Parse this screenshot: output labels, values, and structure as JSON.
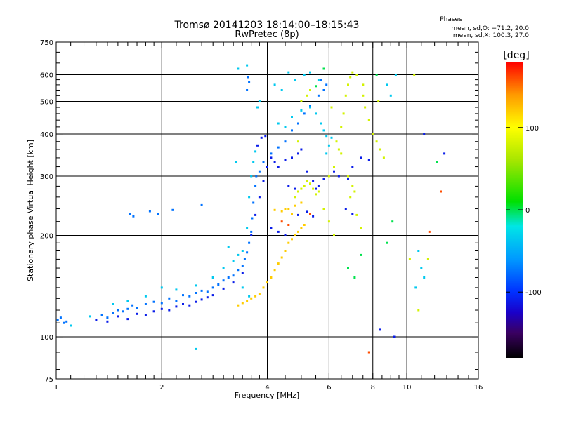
{
  "chart_data": {
    "type": "scatter",
    "title": "Tromsø 20141203 18:14:00–18:15:43",
    "subtitle": "RwPretec (8p)",
    "stats": {
      "heading": "Phases",
      "line1": "mean, sd,O: −71.2, 20.0",
      "line2": "mean, sd,X: 100.3, 27.0"
    },
    "xlabel": "Frequency [MHz]",
    "ylabel": "Stationary phase Virtual Height [km]",
    "x_scale": "log",
    "y_scale": "log",
    "xlim": [
      1,
      16
    ],
    "ylim": [
      75,
      750
    ],
    "x_ticks": [
      1,
      2,
      4,
      6,
      8,
      10,
      16
    ],
    "x_tick_labels": [
      "1",
      "2",
      "4",
      "6",
      "8",
      "10",
      "16"
    ],
    "x_minor_ticks": [
      1.1,
      1.2,
      1.3,
      1.4,
      1.5,
      1.6,
      1.7,
      1.8,
      1.9,
      2.2,
      2.4,
      2.6,
      2.8,
      3,
      3.2,
      3.4,
      3.6,
      3.8,
      4.5,
      5,
      5.5,
      6.5,
      7,
      7.5,
      8.5,
      9,
      9.5,
      11,
      12,
      13,
      14,
      15
    ],
    "y_ticks": [
      75,
      100,
      200,
      300,
      400,
      500,
      600,
      750
    ],
    "y_tick_labels": [
      "75",
      "100",
      "200",
      "300",
      "400",
      "500",
      "600",
      "750"
    ],
    "y_minor_ticks": [
      80,
      90,
      110,
      120,
      130,
      140,
      150,
      160,
      170,
      180,
      190,
      220,
      240,
      260,
      280,
      320,
      340,
      360,
      380,
      420,
      440,
      460,
      480,
      520,
      540,
      560,
      580,
      650,
      700
    ],
    "grid": true,
    "grid_x": [
      2,
      4,
      6,
      8,
      10
    ],
    "grid_y": [
      100,
      200,
      300,
      400,
      500,
      600
    ],
    "colorbar": {
      "label": "[deg]",
      "min": -180,
      "max": 180,
      "ticks": [
        100,
        0,
        -100
      ],
      "tick_labels": [
        "100",
        "0",
        "-100"
      ],
      "colormap": [
        {
          "value": -180,
          "color": "#000000"
        },
        {
          "value": -150,
          "color": "#3a0060"
        },
        {
          "value": -125,
          "color": "#1a00c8"
        },
        {
          "value": -100,
          "color": "#0030ff"
        },
        {
          "value": -60,
          "color": "#0099ff"
        },
        {
          "value": -20,
          "color": "#00e6e6"
        },
        {
          "value": 10,
          "color": "#00e000"
        },
        {
          "value": 60,
          "color": "#a6e600"
        },
        {
          "value": 100,
          "color": "#ffff00"
        },
        {
          "value": 140,
          "color": "#ff9900"
        },
        {
          "value": 180,
          "color": "#ff0000"
        }
      ]
    },
    "series": [
      {
        "phase": -75,
        "points": [
          [
            1.01,
            112
          ],
          [
            1.03,
            114
          ],
          [
            1.05,
            110
          ],
          [
            1.07,
            111
          ],
          [
            1.35,
            116
          ],
          [
            1.4,
            114
          ],
          [
            1.45,
            118
          ],
          [
            1.5,
            120
          ],
          [
            1.55,
            119
          ],
          [
            1.6,
            121
          ],
          [
            1.65,
            124
          ],
          [
            1.7,
            122
          ],
          [
            1.8,
            125
          ],
          [
            1.9,
            127
          ],
          [
            2.0,
            126
          ],
          [
            2.1,
            130
          ],
          [
            2.2,
            128
          ],
          [
            2.3,
            133
          ],
          [
            2.4,
            132
          ],
          [
            2.5,
            135
          ],
          [
            2.6,
            137
          ],
          [
            2.7,
            136
          ],
          [
            2.8,
            140
          ],
          [
            2.9,
            143
          ],
          [
            3.0,
            147
          ],
          [
            3.1,
            150
          ],
          [
            3.2,
            152
          ],
          [
            3.3,
            158
          ],
          [
            3.4,
            162
          ],
          [
            3.45,
            170
          ],
          [
            3.5,
            178
          ],
          [
            3.55,
            190
          ],
          [
            3.6,
            205
          ],
          [
            3.62,
            225
          ],
          [
            3.65,
            250
          ],
          [
            3.7,
            280
          ],
          [
            3.72,
            300
          ],
          [
            3.8,
            310
          ],
          [
            3.9,
            330
          ],
          [
            4.1,
            350
          ],
          [
            4.3,
            365
          ],
          [
            4.5,
            380
          ],
          [
            4.7,
            410
          ],
          [
            4.9,
            430
          ],
          [
            5.1,
            460
          ],
          [
            5.3,
            485
          ],
          [
            5.6,
            520
          ],
          [
            5.8,
            540
          ],
          [
            5.9,
            560
          ],
          [
            5.7,
            580
          ],
          [
            3.52,
            590
          ],
          [
            3.55,
            570
          ],
          [
            3.5,
            540
          ],
          [
            1.62,
            232
          ],
          [
            1.66,
            228
          ],
          [
            1.85,
            236
          ],
          [
            1.95,
            232
          ],
          [
            2.15,
            238
          ],
          [
            2.6,
            246
          ]
        ]
      },
      {
        "phase": -110,
        "points": [
          [
            1.3,
            112
          ],
          [
            1.4,
            111
          ],
          [
            1.5,
            115
          ],
          [
            1.6,
            113
          ],
          [
            1.7,
            117
          ],
          [
            1.8,
            116
          ],
          [
            1.9,
            119
          ],
          [
            2.0,
            121
          ],
          [
            2.1,
            120
          ],
          [
            2.2,
            123
          ],
          [
            2.3,
            125
          ],
          [
            2.4,
            124
          ],
          [
            2.5,
            127
          ],
          [
            2.6,
            129
          ],
          [
            2.7,
            131
          ],
          [
            2.8,
            133
          ],
          [
            3.0,
            139
          ],
          [
            3.2,
            145
          ],
          [
            3.4,
            155
          ],
          [
            3.6,
            200
          ],
          [
            3.7,
            230
          ],
          [
            3.8,
            260
          ],
          [
            3.9,
            290
          ],
          [
            4.0,
            320
          ],
          [
            4.1,
            340
          ],
          [
            4.2,
            330
          ],
          [
            4.3,
            320
          ],
          [
            4.5,
            335
          ],
          [
            4.7,
            340
          ],
          [
            4.9,
            350
          ],
          [
            5.0,
            360
          ],
          [
            5.2,
            310
          ],
          [
            5.4,
            290
          ],
          [
            5.5,
            275
          ],
          [
            5.6,
            280
          ],
          [
            5.8,
            295
          ],
          [
            6.2,
            310
          ],
          [
            6.4,
            300
          ],
          [
            6.8,
            295
          ],
          [
            7.0,
            320
          ],
          [
            7.4,
            340
          ],
          [
            7.8,
            335
          ],
          [
            4.6,
            280
          ],
          [
            4.8,
            275
          ],
          [
            4.9,
            230
          ],
          [
            5.2,
            235
          ],
          [
            5.4,
            228
          ],
          [
            4.1,
            210
          ],
          [
            4.3,
            205
          ],
          [
            4.5,
            200
          ],
          [
            6.7,
            240
          ],
          [
            7.0,
            232
          ],
          [
            8.4,
            105
          ],
          [
            9.2,
            100
          ],
          [
            11.2,
            400
          ],
          [
            12.8,
            350
          ],
          [
            3.75,
            370
          ],
          [
            3.85,
            390
          ],
          [
            3.95,
            395
          ]
        ]
      },
      {
        "phase": -35,
        "points": [
          [
            1.1,
            108
          ],
          [
            1.25,
            115
          ],
          [
            1.45,
            125
          ],
          [
            1.6,
            128
          ],
          [
            1.8,
            132
          ],
          [
            2.0,
            140
          ],
          [
            2.2,
            138
          ],
          [
            2.5,
            142
          ],
          [
            2.8,
            150
          ],
          [
            3.0,
            160
          ],
          [
            3.2,
            168
          ],
          [
            3.3,
            175
          ],
          [
            3.4,
            180
          ],
          [
            3.5,
            210
          ],
          [
            3.55,
            260
          ],
          [
            3.6,
            300
          ],
          [
            3.65,
            330
          ],
          [
            3.7,
            355
          ],
          [
            3.75,
            480
          ],
          [
            3.8,
            500
          ],
          [
            4.3,
            430
          ],
          [
            4.5,
            420
          ],
          [
            4.7,
            450
          ],
          [
            5.0,
            470
          ],
          [
            5.3,
            480
          ],
          [
            5.5,
            460
          ],
          [
            5.7,
            430
          ],
          [
            5.8,
            410
          ],
          [
            5.9,
            395
          ],
          [
            3.5,
            640
          ],
          [
            3.3,
            625
          ],
          [
            4.8,
            580
          ],
          [
            5.1,
            600
          ],
          [
            5.3,
            610
          ],
          [
            5.6,
            580
          ],
          [
            9.3,
            600
          ],
          [
            9.0,
            520
          ],
          [
            8.8,
            560
          ],
          [
            2.5,
            92
          ],
          [
            3.1,
            185
          ],
          [
            4.2,
            560
          ],
          [
            4.4,
            540
          ],
          [
            4.6,
            610
          ],
          [
            3.25,
            330
          ],
          [
            3.4,
            140
          ],
          [
            3.55,
            132
          ],
          [
            5.9,
            350
          ],
          [
            6.0,
            370
          ],
          [
            6.1,
            390
          ],
          [
            11.0,
            160
          ],
          [
            11.2,
            150
          ],
          [
            10.8,
            180
          ],
          [
            10.6,
            140
          ]
        ]
      },
      {
        "phase": 120,
        "points": [
          [
            3.3,
            124
          ],
          [
            3.4,
            126
          ],
          [
            3.5,
            128
          ],
          [
            3.6,
            130
          ],
          [
            3.7,
            132
          ],
          [
            3.8,
            134
          ],
          [
            3.9,
            140
          ],
          [
            4.0,
            145
          ],
          [
            4.1,
            150
          ],
          [
            4.2,
            158
          ],
          [
            4.3,
            165
          ],
          [
            4.4,
            172
          ],
          [
            4.5,
            180
          ],
          [
            4.6,
            190
          ],
          [
            4.7,
            195
          ],
          [
            4.8,
            200
          ],
          [
            4.9,
            205
          ],
          [
            5.0,
            210
          ],
          [
            5.1,
            215
          ],
          [
            4.2,
            238
          ],
          [
            4.4,
            236
          ],
          [
            4.6,
            240
          ],
          [
            4.8,
            245
          ],
          [
            5.0,
            250
          ],
          [
            4.5,
            240
          ],
          [
            4.7,
            232
          ]
        ]
      },
      {
        "phase": 80,
        "points": [
          [
            4.8,
            260
          ],
          [
            4.9,
            270
          ],
          [
            5.0,
            275
          ],
          [
            5.1,
            280
          ],
          [
            5.2,
            290
          ],
          [
            5.3,
            285
          ],
          [
            5.4,
            275
          ],
          [
            5.5,
            265
          ],
          [
            5.6,
            270
          ],
          [
            6.0,
            300
          ],
          [
            6.2,
            320
          ],
          [
            6.4,
            360
          ],
          [
            6.5,
            420
          ],
          [
            6.6,
            460
          ],
          [
            6.7,
            520
          ],
          [
            6.8,
            560
          ],
          [
            6.9,
            590
          ],
          [
            7.0,
            610
          ],
          [
            7.2,
            600
          ],
          [
            7.5,
            520
          ],
          [
            7.6,
            480
          ],
          [
            7.8,
            440
          ],
          [
            8.0,
            400
          ],
          [
            8.2,
            380
          ],
          [
            8.4,
            360
          ],
          [
            8.6,
            340
          ],
          [
            6.3,
            380
          ],
          [
            6.5,
            350
          ],
          [
            6.8,
            300
          ],
          [
            7.0,
            280
          ],
          [
            7.1,
            270
          ],
          [
            6.9,
            260
          ],
          [
            5.8,
            240
          ],
          [
            6.0,
            220
          ],
          [
            6.2,
            200
          ],
          [
            7.2,
            230
          ],
          [
            7.4,
            210
          ],
          [
            10.5,
            600
          ],
          [
            10.2,
            170
          ],
          [
            11.5,
            170
          ],
          [
            10.8,
            120
          ],
          [
            5.0,
            500
          ],
          [
            5.2,
            520
          ],
          [
            5.3,
            540
          ],
          [
            6.1,
            480
          ],
          [
            7.5,
            560
          ],
          [
            8.3,
            500
          ],
          [
            4.9,
            380
          ]
        ]
      },
      {
        "phase": 160,
        "points": [
          [
            7.8,
            90
          ],
          [
            12.5,
            270
          ],
          [
            11.6,
            205
          ],
          [
            4.4,
            220
          ],
          [
            4.6,
            215
          ],
          [
            5.3,
            232
          ]
        ]
      },
      {
        "phase": 0,
        "points": [
          [
            6.8,
            160
          ],
          [
            7.1,
            150
          ],
          [
            7.4,
            175
          ],
          [
            8.2,
            600
          ],
          [
            5.5,
            555
          ],
          [
            5.8,
            625
          ],
          [
            8.8,
            190
          ],
          [
            9.1,
            220
          ],
          [
            12.2,
            330
          ]
        ]
      }
    ]
  }
}
